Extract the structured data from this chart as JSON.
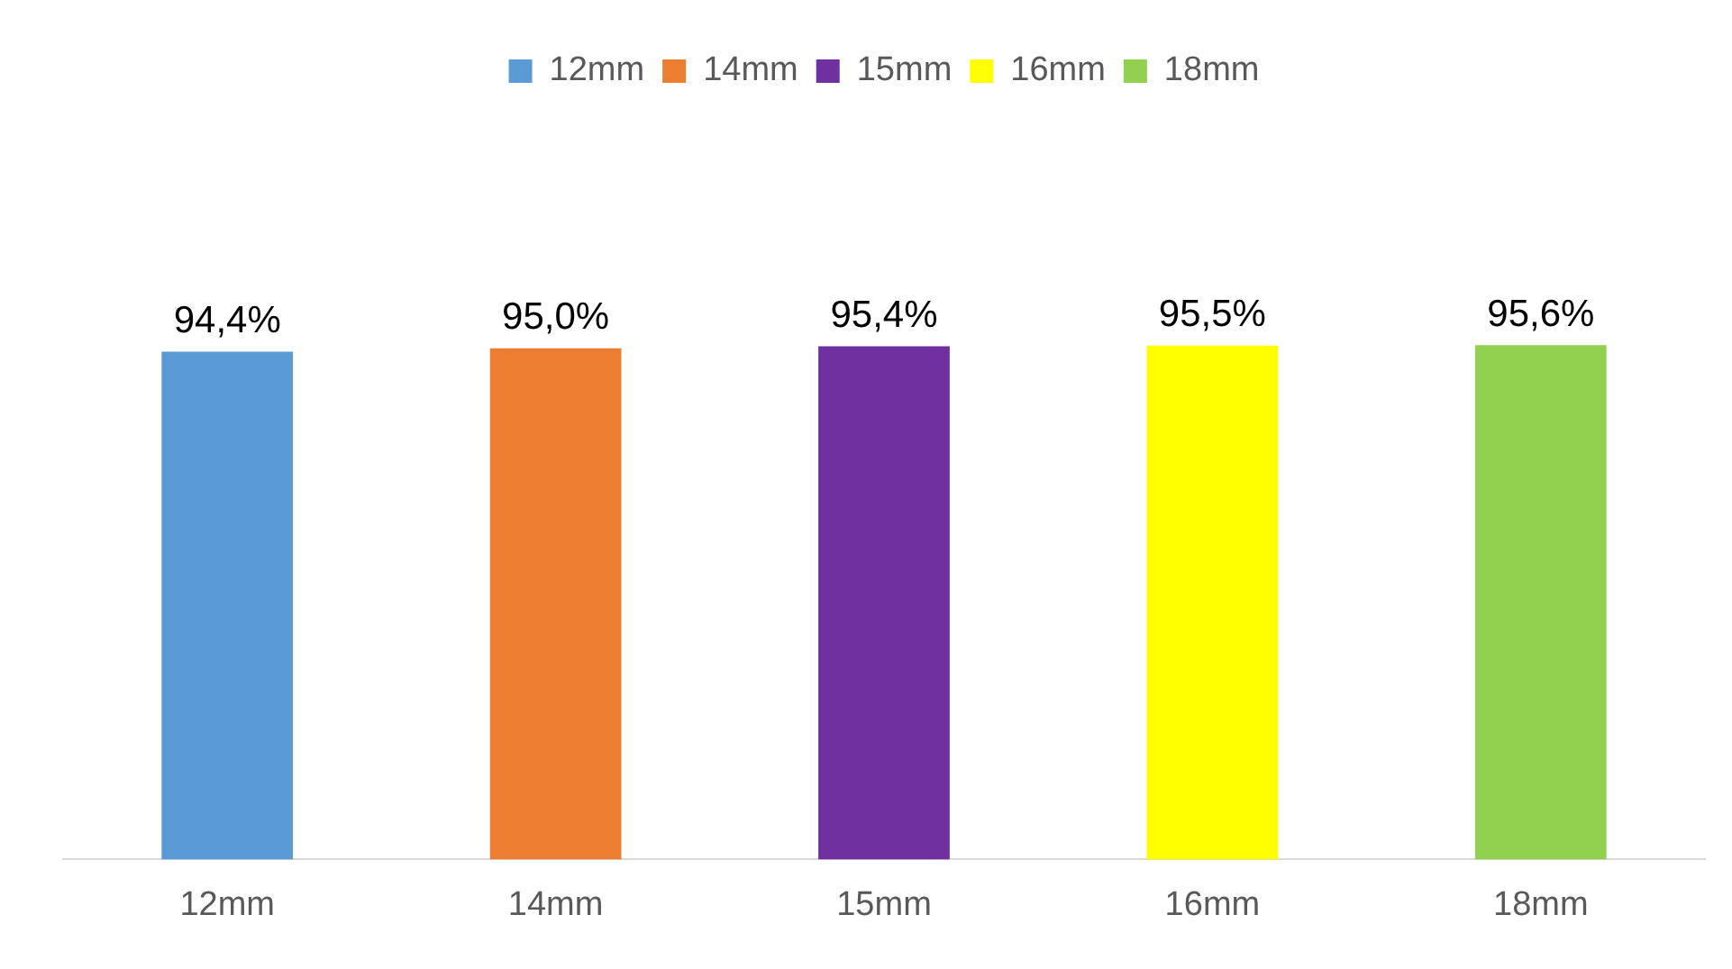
{
  "chart_data": {
    "type": "bar",
    "categories": [
      "12mm",
      "14mm",
      "15mm",
      "16mm",
      "18mm"
    ],
    "series": [
      {
        "name": "12mm",
        "color": "#5b9bd5",
        "values": [
          94.4,
          null,
          null,
          null,
          null
        ],
        "value_labels": [
          "94,4%",
          null,
          null,
          null,
          null
        ]
      },
      {
        "name": "14mm",
        "color": "#ed7d31",
        "values": [
          null,
          95.0,
          null,
          null,
          null
        ],
        "value_labels": [
          null,
          "95,0%",
          null,
          null,
          null
        ]
      },
      {
        "name": "15mm",
        "color": "#7030a0",
        "values": [
          null,
          null,
          95.4,
          null,
          null
        ],
        "value_labels": [
          null,
          null,
          "95,4%",
          null,
          null
        ]
      },
      {
        "name": "16mm",
        "color": "#ffff00",
        "values": [
          null,
          null,
          null,
          95.5,
          null
        ],
        "value_labels": [
          null,
          null,
          null,
          "95,5%",
          null
        ]
      },
      {
        "name": "18mm",
        "color": "#92d050",
        "values": [
          null,
          null,
          null,
          null,
          95.6
        ],
        "value_labels": [
          null,
          null,
          null,
          null,
          "95,6%"
        ]
      }
    ],
    "tick_labels": "x",
    "grid": false,
    "legend": "top"
  }
}
